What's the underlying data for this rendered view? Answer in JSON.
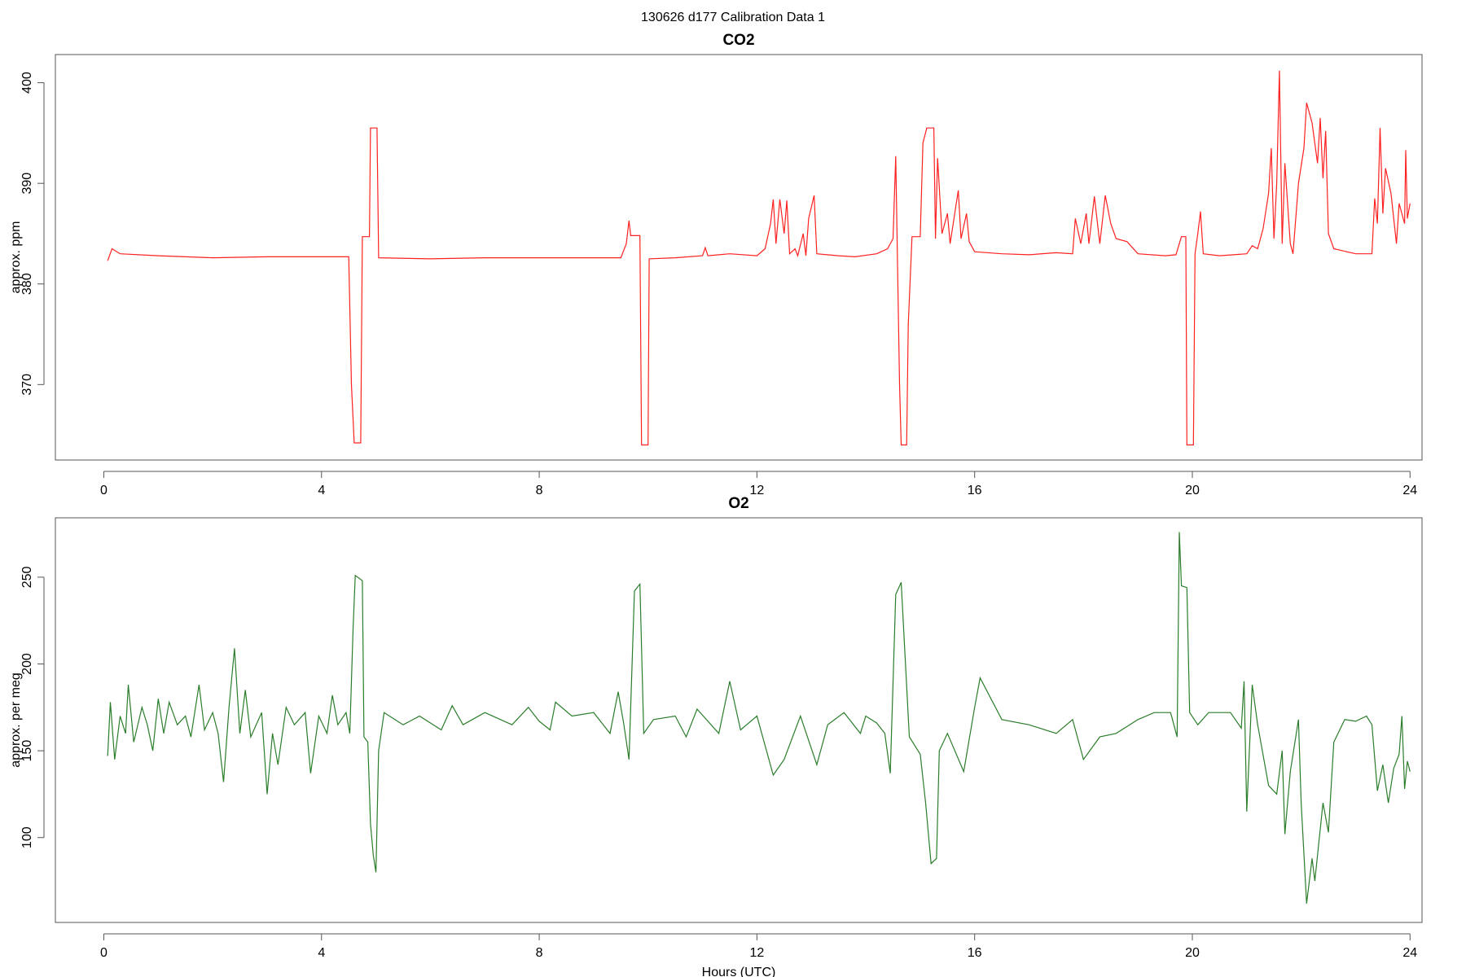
{
  "title": "130626   d177   Calibration Data 1",
  "chart_data": [
    {
      "type": "line",
      "title": "CO2",
      "y_label": "approx. ppm",
      "x": [
        0.07,
        0.15,
        0.3,
        1,
        2,
        3,
        4.5,
        4.55,
        4.6,
        4.72,
        4.75,
        4.88,
        4.9,
        5.02,
        5.05,
        6,
        7,
        8,
        9.5,
        9.6,
        9.65,
        9.68,
        9.85,
        9.88,
        10.0,
        10.02,
        10.5,
        11,
        11.05,
        11.1,
        11.5,
        12,
        12.15,
        12.25,
        12.3,
        12.35,
        12.42,
        12.5,
        12.55,
        12.6,
        12.7,
        12.75,
        12.85,
        12.9,
        12.95,
        13.05,
        13.1,
        13.5,
        13.8,
        14.2,
        14.4,
        14.5,
        14.55,
        14.58,
        14.62,
        14.65,
        14.75,
        14.78,
        14.85,
        15.0,
        15.05,
        15.12,
        15.25,
        15.28,
        15.32,
        15.4,
        15.5,
        15.55,
        15.7,
        15.75,
        15.85,
        15.9,
        16.0,
        16.5,
        17,
        17.5,
        17.8,
        17.85,
        17.95,
        18.05,
        18.1,
        18.2,
        18.3,
        18.4,
        18.5,
        18.6,
        18.8,
        19,
        19.5,
        19.7,
        19.8,
        19.88,
        19.9,
        20.02,
        20.05,
        20.1,
        20.15,
        20.2,
        20.5,
        21,
        21.1,
        21.2,
        21.3,
        21.4,
        21.45,
        21.5,
        21.55,
        21.6,
        21.65,
        21.7,
        21.8,
        21.85,
        21.95,
        22.05,
        22.1,
        22.2,
        22.3,
        22.35,
        22.4,
        22.45,
        22.5,
        22.6,
        23,
        23.3,
        23.35,
        23.4,
        23.45,
        23.5,
        23.55,
        23.65,
        23.75,
        23.8,
        23.9,
        23.92,
        23.95,
        24.0
      ],
      "series": [
        {
          "color": "#ff2020",
          "values": [
            382.3,
            383.5,
            383.0,
            382.8,
            382.6,
            382.7,
            382.7,
            370,
            364.2,
            364.2,
            384.7,
            384.7,
            395.5,
            395.5,
            382.6,
            382.5,
            382.6,
            382.6,
            382.6,
            384,
            386.3,
            384.8,
            384.8,
            364,
            364,
            382.5,
            382.6,
            382.8,
            383.6,
            382.8,
            383,
            382.8,
            383.5,
            386,
            388.4,
            384,
            388.4,
            385,
            388.3,
            383,
            383.5,
            382.8,
            385,
            382.8,
            386.5,
            388.8,
            383,
            382.8,
            382.7,
            383,
            383.5,
            384.5,
            392.7,
            383,
            370,
            364,
            364,
            376,
            384.7,
            384.7,
            394,
            395.5,
            395.5,
            384.5,
            392.5,
            385,
            387,
            384,
            389.3,
            384.5,
            387,
            384.2,
            383.2,
            383,
            382.9,
            383.1,
            383,
            386.5,
            384,
            387,
            384,
            388.7,
            384,
            388.8,
            386,
            384.5,
            384.2,
            383,
            382.8,
            382.9,
            384.7,
            384.7,
            364,
            364,
            383,
            385,
            387.2,
            383,
            382.8,
            383,
            383.8,
            383.5,
            385.5,
            389,
            393.5,
            384.5,
            390,
            401.2,
            384,
            392,
            384,
            383,
            390,
            393.5,
            398,
            396,
            392,
            396.5,
            390.5,
            395.2,
            385,
            383.5,
            383,
            383,
            388.5,
            386,
            395.5,
            387,
            391.5,
            389,
            384,
            388,
            386,
            393.3,
            386.5,
            388
          ]
        }
      ],
      "xlim": [
        -0.89,
        24.22
      ],
      "ylim": [
        362.5,
        402.8
      ],
      "xticks": [
        0,
        4,
        8,
        12,
        16,
        20,
        24
      ],
      "yticks": [
        370,
        380,
        390,
        400
      ]
    },
    {
      "type": "line",
      "title": "O2",
      "y_label": "approx. per meg",
      "x_label": "Hours (UTC)",
      "x": [
        0.07,
        0.12,
        0.2,
        0.3,
        0.4,
        0.45,
        0.55,
        0.7,
        0.8,
        0.9,
        1,
        1.1,
        1.2,
        1.35,
        1.5,
        1.6,
        1.75,
        1.85,
        2,
        2.1,
        2.2,
        2.3,
        2.4,
        2.5,
        2.6,
        2.7,
        2.9,
        3.0,
        3.1,
        3.2,
        3.35,
        3.5,
        3.7,
        3.8,
        3.95,
        4.1,
        4.2,
        4.3,
        4.45,
        4.52,
        4.58,
        4.62,
        4.75,
        4.78,
        4.85,
        4.9,
        4.95,
        5.0,
        5.05,
        5.15,
        5.5,
        5.8,
        6.2,
        6.4,
        6.6,
        7,
        7.5,
        7.8,
        8,
        8.2,
        8.3,
        8.6,
        9,
        9.3,
        9.45,
        9.55,
        9.65,
        9.75,
        9.85,
        9.92,
        10.1,
        10.5,
        10.7,
        10.9,
        11.3,
        11.5,
        11.7,
        12.0,
        12.3,
        12.5,
        12.8,
        13.1,
        13.3,
        13.6,
        13.9,
        14.0,
        14.2,
        14.35,
        14.45,
        14.55,
        14.65,
        14.8,
        15.0,
        15.1,
        15.2,
        15.3,
        15.35,
        15.5,
        15.8,
        16.0,
        16.1,
        16.5,
        17,
        17.5,
        17.8,
        18,
        18.3,
        18.6,
        19,
        19.3,
        19.6,
        19.72,
        19.76,
        19.8,
        19.9,
        19.95,
        20.1,
        20.3,
        20.7,
        20.9,
        20.95,
        21.0,
        21.1,
        21.2,
        21.4,
        21.55,
        21.65,
        21.7,
        21.8,
        21.95,
        22.0,
        22.1,
        22.2,
        22.25,
        22.4,
        22.5,
        22.6,
        22.8,
        23.0,
        23.2,
        23.3,
        23.4,
        23.5,
        23.6,
        23.7,
        23.8,
        23.85,
        23.9,
        23.95,
        24.0
      ],
      "series": [
        {
          "color": "#2a7d2a",
          "values": [
            147,
            178,
            145,
            170,
            160,
            188,
            155,
            175,
            165,
            150,
            180,
            160,
            178,
            165,
            170,
            158,
            188,
            162,
            172,
            160,
            132,
            175,
            209,
            160,
            185,
            158,
            172,
            125,
            160,
            142,
            175,
            165,
            172,
            137,
            170,
            160,
            182,
            165,
            172,
            160,
            220,
            251,
            248,
            158,
            155,
            108,
            90,
            80,
            150,
            172,
            165,
            170,
            162,
            176,
            165,
            172,
            165,
            175,
            167,
            162,
            178,
            170,
            172,
            160,
            184,
            166,
            145,
            242,
            246,
            160,
            168,
            170,
            158,
            174,
            160,
            190,
            162,
            170,
            136,
            145,
            170,
            142,
            165,
            172,
            160,
            170,
            166,
            160,
            137,
            240,
            247,
            158,
            148,
            120,
            85,
            88,
            150,
            160,
            138,
            175,
            192,
            168,
            165,
            160,
            168,
            145,
            158,
            160,
            168,
            172,
            172,
            158,
            276,
            245,
            244,
            172,
            165,
            172,
            172,
            163,
            190,
            115,
            188,
            165,
            130,
            125,
            150,
            102,
            138,
            168,
            120,
            62,
            88,
            75,
            120,
            103,
            155,
            168,
            167,
            170,
            165,
            127,
            142,
            120,
            140,
            148,
            170,
            128,
            144,
            138
          ]
        }
      ],
      "xlim": [
        -0.89,
        24.22
      ],
      "ylim": [
        51.1,
        284.2
      ],
      "xticks": [
        0,
        4,
        8,
        12,
        16,
        20,
        24
      ],
      "yticks": [
        100,
        150,
        200,
        250
      ]
    }
  ]
}
